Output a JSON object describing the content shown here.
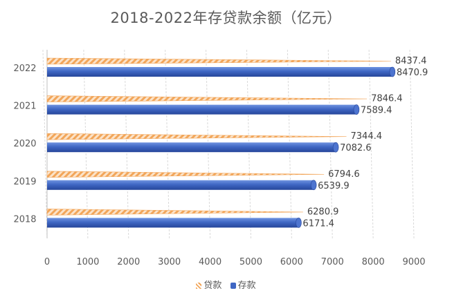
{
  "chart_data": {
    "type": "bar",
    "orientation": "horizontal",
    "title": "2018-2022年存贷款余额（亿元）",
    "categories": [
      "2018",
      "2019",
      "2020",
      "2021",
      "2022"
    ],
    "series": [
      {
        "name": "贷款",
        "values": [
          6280.9,
          6794.6,
          7344.4,
          7846.4,
          8437.4
        ],
        "data_labels": [
          "6280.9",
          "6794.6",
          "7344.4",
          "7846.4",
          "8437.4"
        ]
      },
      {
        "name": "存款",
        "values": [
          6171.4,
          6539.9,
          7082.6,
          7589.4,
          8470.9
        ],
        "data_labels": [
          "6171.4",
          "6539.9",
          "7082.6",
          "7589.4",
          "8470.9"
        ]
      }
    ],
    "xlim": [
      0,
      9000
    ],
    "x_ticks": [
      "0",
      "1000",
      "2000",
      "3000",
      "4000",
      "5000",
      "6000",
      "7000",
      "8000",
      "9000"
    ],
    "grid": true,
    "legend": "bottom",
    "colors": {
      "贷款": "#f2a65a",
      "存款": "#3f67c4"
    }
  }
}
